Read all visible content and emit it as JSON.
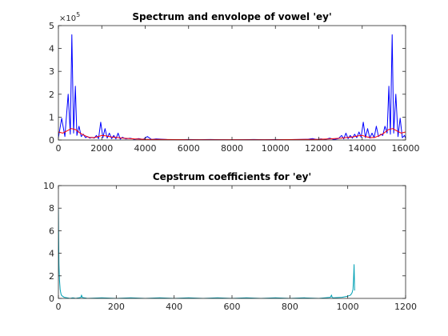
{
  "chart_data": [
    {
      "type": "line",
      "title": "Spectrum and envolope of vowel 'ey'",
      "xlabel": "",
      "ylabel": "",
      "xlim": [
        0,
        16000
      ],
      "ylim": [
        0,
        500000
      ],
      "x_ticks": [
        "0",
        "2000",
        "4000",
        "6000",
        "8000",
        "10000",
        "12000",
        "14000",
        "16000"
      ],
      "y_ticks": [
        "0",
        "1",
        "2",
        "3",
        "4",
        "5"
      ],
      "y_exponent_label": "×10",
      "y_exponent_power": "5",
      "grid": false,
      "series": [
        {
          "color": "#0000ff",
          "x": [
            0,
            150,
            300,
            450,
            550,
            620,
            700,
            780,
            850,
            950,
            1050,
            1150,
            1250,
            1350,
            1450,
            1550,
            1650,
            1750,
            1850,
            1950,
            2050,
            2150,
            2250,
            2350,
            2450,
            2550,
            2650,
            2750,
            2850,
            2950,
            3100,
            3300,
            3500,
            3700,
            3900,
            4100,
            4300,
            4500,
            5000,
            5500,
            6000,
            6500,
            7000,
            7500,
            8000,
            8500,
            9000,
            9500,
            10000,
            10500,
            11000,
            11500,
            11700,
            11900,
            12100,
            12300,
            12500,
            12700,
            12900,
            13050,
            13150,
            13250,
            13350,
            13450,
            13550,
            13650,
            13750,
            13850,
            13950,
            14050,
            14150,
            14250,
            14350,
            14450,
            14550,
            14650,
            14750,
            14850,
            14950,
            15050,
            15150,
            15230,
            15300,
            15380,
            15450,
            15550,
            15650,
            15750,
            15850,
            15950,
            16000
          ],
          "y": [
            10000,
            95000,
            15000,
            200000,
            25000,
            460000,
            30000,
            235000,
            20000,
            60000,
            15000,
            25000,
            10000,
            15000,
            8000,
            12000,
            8000,
            20000,
            6000,
            78000,
            10000,
            50000,
            8000,
            30000,
            6000,
            20000,
            5000,
            30000,
            4000,
            12000,
            5000,
            8000,
            3000,
            6000,
            2000,
            15000,
            2000,
            5000,
            2000,
            1500,
            2000,
            1500,
            2000,
            1500,
            1000,
            1500,
            2000,
            1500,
            2000,
            1500,
            2000,
            3000,
            6000,
            2000,
            5000,
            2000,
            8000,
            2000,
            6000,
            20000,
            5000,
            30000,
            6000,
            20000,
            8000,
            25000,
            10000,
            35000,
            12000,
            78000,
            10000,
            50000,
            8000,
            30000,
            10000,
            60000,
            15000,
            25000,
            20000,
            60000,
            30000,
            235000,
            25000,
            460000,
            30000,
            200000,
            15000,
            95000,
            10000,
            20000,
            8000
          ]
        },
        {
          "color": "#ff0000",
          "x": [
            0,
            200,
            400,
            600,
            800,
            1000,
            1200,
            1400,
            1600,
            1800,
            2000,
            2200,
            2400,
            2600,
            2800,
            3000,
            3500,
            4000,
            5000,
            6000,
            7000,
            8000,
            9000,
            10000,
            11000,
            12000,
            12500,
            13000,
            13200,
            13400,
            13600,
            13800,
            14000,
            14200,
            14400,
            14600,
            14800,
            15000,
            15200,
            15400,
            15600,
            15800,
            16000
          ],
          "y": [
            35000,
            30000,
            40000,
            50000,
            45000,
            30000,
            20000,
            12000,
            10000,
            14000,
            20000,
            18000,
            14000,
            12000,
            10000,
            8000,
            5000,
            3000,
            2000,
            1500,
            1500,
            1500,
            1500,
            1500,
            2000,
            3000,
            5000,
            8000,
            10000,
            12000,
            14000,
            18000,
            20000,
            14000,
            10000,
            12000,
            20000,
            30000,
            45000,
            50000,
            40000,
            30000,
            35000
          ]
        }
      ]
    },
    {
      "type": "line",
      "title": "Cepstrum coefficients for 'ey'",
      "xlabel": "",
      "ylabel": "",
      "xlim": [
        0,
        1200
      ],
      "ylim": [
        0,
        10
      ],
      "x_ticks": [
        "0",
        "200",
        "400",
        "600",
        "800",
        "1000",
        "1200"
      ],
      "y_ticks": [
        "0",
        "2",
        "4",
        "6",
        "8",
        "10"
      ],
      "grid": false,
      "series": [
        {
          "color": "#00a0b4",
          "x": [
            0,
            1,
            2,
            3,
            4,
            6,
            8,
            10,
            14,
            20,
            30,
            40,
            50,
            60,
            70,
            78,
            80,
            82,
            90,
            100,
            150,
            200,
            250,
            300,
            350,
            400,
            450,
            500,
            550,
            600,
            650,
            700,
            750,
            800,
            850,
            900,
            940,
            944,
            946,
            950,
            980,
            1000,
            1010,
            1015,
            1018,
            1020,
            1022,
            1024
          ],
          "y": [
            8.0,
            5.0,
            3.0,
            2.2,
            1.6,
            0.8,
            0.5,
            0.3,
            0.2,
            0.1,
            0.05,
            0.0,
            0.05,
            0.0,
            0.05,
            0.1,
            0.3,
            0.1,
            0.05,
            0.0,
            0.05,
            0.0,
            0.05,
            0.0,
            0.05,
            0.0,
            0.05,
            0.0,
            0.05,
            0.0,
            0.05,
            0.0,
            0.05,
            0.0,
            0.05,
            0.0,
            0.1,
            0.3,
            0.1,
            0.05,
            0.1,
            0.2,
            0.3,
            0.5,
            0.8,
            1.6,
            3.0,
            0.7
          ]
        }
      ]
    }
  ]
}
